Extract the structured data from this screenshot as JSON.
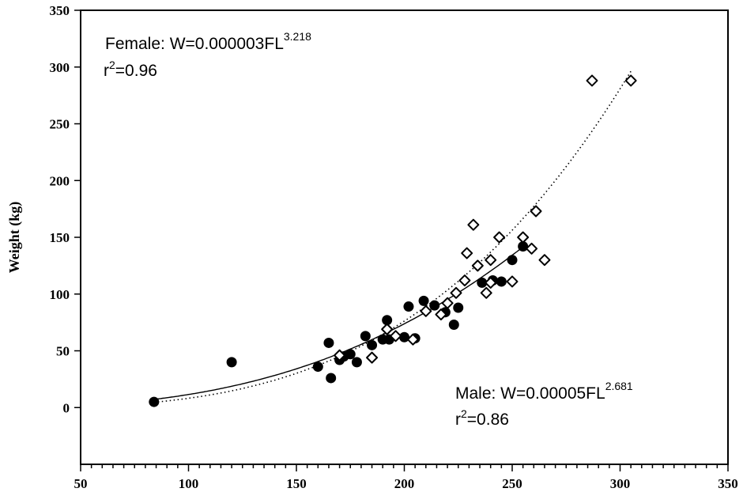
{
  "chart_data": {
    "type": "scatter",
    "ylabel": "Weight (kg)",
    "xlabel": "",
    "xlim": [
      50,
      350
    ],
    "ylim": [
      -50,
      350
    ],
    "xticks": [
      50,
      100,
      150,
      200,
      250,
      300,
      350
    ],
    "yticks": [
      0,
      50,
      100,
      150,
      200,
      250,
      300,
      350
    ],
    "minor_x_step": 5,
    "annotations": {
      "female": {
        "prefix": "Female: W=0.000003FL",
        "exponent": "3.218",
        "r2_prefix": "r",
        "r2_sup": "2",
        "r2_value": "=0.96"
      },
      "male": {
        "prefix": "Male: W=0.00005FL",
        "exponent": "2.681",
        "r2_prefix": "r",
        "r2_sup": "2",
        "r2_value": "=0.86"
      }
    },
    "series": [
      {
        "marker": "filled-circle",
        "color": "#000000",
        "points": [
          [
            84,
            5
          ],
          [
            120,
            40
          ],
          [
            160,
            36
          ],
          [
            165,
            57
          ],
          [
            166,
            26
          ],
          [
            170,
            42
          ],
          [
            172,
            45
          ],
          [
            175,
            47
          ],
          [
            178,
            40
          ],
          [
            182,
            63
          ],
          [
            185,
            55
          ],
          [
            190,
            60
          ],
          [
            192,
            77
          ],
          [
            193,
            60
          ],
          [
            200,
            62
          ],
          [
            202,
            89
          ],
          [
            205,
            61
          ],
          [
            209,
            94
          ],
          [
            214,
            90
          ],
          [
            219,
            84
          ],
          [
            223,
            73
          ],
          [
            225,
            88
          ],
          [
            236,
            110
          ],
          [
            241,
            112
          ],
          [
            245,
            111
          ],
          [
            250,
            130
          ],
          [
            255,
            142
          ]
        ],
        "fit": {
          "a": 5e-05,
          "b": 2.681,
          "x_range": [
            84,
            255
          ],
          "style": "solid"
        }
      },
      {
        "marker": "open-diamond",
        "color": "#000000",
        "points": [
          [
            170,
            46
          ],
          [
            185,
            44
          ],
          [
            192,
            69
          ],
          [
            196,
            63
          ],
          [
            204,
            60
          ],
          [
            210,
            85
          ],
          [
            217,
            82
          ],
          [
            220,
            92
          ],
          [
            224,
            101
          ],
          [
            228,
            112
          ],
          [
            229,
            136
          ],
          [
            232,
            161
          ],
          [
            234,
            125
          ],
          [
            238,
            101
          ],
          [
            240,
            110
          ],
          [
            240,
            130
          ],
          [
            244,
            150
          ],
          [
            250,
            111
          ],
          [
            255,
            150
          ],
          [
            259,
            140
          ],
          [
            261,
            173
          ],
          [
            265,
            130
          ],
          [
            287,
            288
          ],
          [
            305,
            288
          ]
        ],
        "fit": {
          "a": 3e-06,
          "b": 3.218,
          "x_range": [
            84,
            305
          ],
          "style": "dotted"
        }
      }
    ]
  }
}
